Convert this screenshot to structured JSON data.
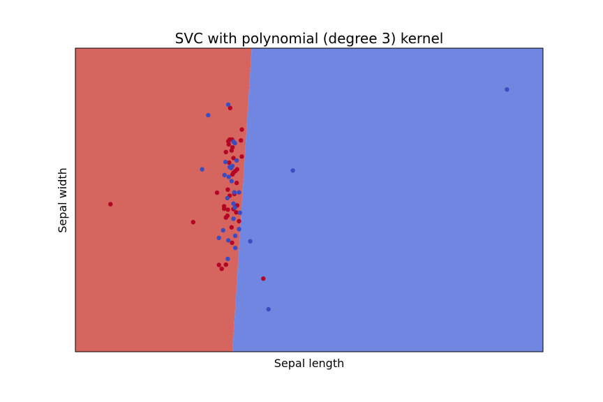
{
  "chart_data": {
    "type": "scatter",
    "title": "SVC with polynomial (degree 3) kernel",
    "xlabel": "Sepal length",
    "ylabel": "Sepal width",
    "xlim": [
      0,
      1
    ],
    "ylim": [
      0,
      1
    ],
    "ticks": "hidden",
    "grid": false,
    "legend": "none",
    "colors": {
      "region_red": "#d6645f",
      "region_blue": "#7086e0",
      "point_red": "#b40426",
      "point_blue": "#3b4cc0"
    },
    "decision_boundary": {
      "x_at_top": 0.377,
      "x_at_bottom": 0.336
    },
    "series": [
      {
        "class": "red",
        "points": [
          [
            0.075,
            0.486
          ],
          [
            0.252,
            0.427
          ],
          [
            0.331,
            0.803
          ],
          [
            0.356,
            0.732
          ],
          [
            0.354,
            0.696
          ],
          [
            0.33,
            0.699
          ],
          [
            0.328,
            0.683
          ],
          [
            0.335,
            0.699
          ],
          [
            0.336,
            0.673
          ],
          [
            0.322,
            0.658
          ],
          [
            0.334,
            0.663
          ],
          [
            0.338,
            0.638
          ],
          [
            0.356,
            0.643
          ],
          [
            0.346,
            0.601
          ],
          [
            0.329,
            0.623
          ],
          [
            0.336,
            0.584
          ],
          [
            0.338,
            0.59
          ],
          [
            0.345,
            0.556
          ],
          [
            0.326,
            0.534
          ],
          [
            0.34,
            0.52
          ],
          [
            0.33,
            0.514
          ],
          [
            0.303,
            0.524
          ],
          [
            0.318,
            0.479
          ],
          [
            0.318,
            0.471
          ],
          [
            0.346,
            0.482
          ],
          [
            0.326,
            0.468
          ],
          [
            0.338,
            0.47
          ],
          [
            0.344,
            0.459
          ],
          [
            0.325,
            0.448
          ],
          [
            0.322,
            0.442
          ],
          [
            0.35,
            0.43
          ],
          [
            0.334,
            0.41
          ],
          [
            0.335,
            0.359
          ],
          [
            0.307,
            0.286
          ],
          [
            0.322,
            0.287
          ],
          [
            0.313,
            0.273
          ],
          [
            0.402,
            0.241
          ],
          [
            0.342,
            0.595
          ],
          [
            0.327,
            0.693
          ]
        ]
      },
      {
        "class": "blue",
        "points": [
          [
            0.923,
            0.864
          ],
          [
            0.284,
            0.779
          ],
          [
            0.327,
            0.814
          ],
          [
            0.338,
            0.692
          ],
          [
            0.341,
            0.687
          ],
          [
            0.321,
            0.625
          ],
          [
            0.33,
            0.608
          ],
          [
            0.336,
            0.612
          ],
          [
            0.271,
            0.601
          ],
          [
            0.465,
            0.597
          ],
          [
            0.319,
            0.582
          ],
          [
            0.328,
            0.576
          ],
          [
            0.334,
            0.562
          ],
          [
            0.34,
            0.525
          ],
          [
            0.35,
            0.525
          ],
          [
            0.325,
            0.506
          ],
          [
            0.338,
            0.488
          ],
          [
            0.341,
            0.475
          ],
          [
            0.352,
            0.458
          ],
          [
            0.338,
            0.438
          ],
          [
            0.35,
            0.404
          ],
          [
            0.316,
            0.4
          ],
          [
            0.342,
            0.382
          ],
          [
            0.307,
            0.375
          ],
          [
            0.327,
            0.367
          ],
          [
            0.374,
            0.364
          ],
          [
            0.342,
            0.342
          ],
          [
            0.326,
            0.306
          ],
          [
            0.413,
            0.14
          ],
          [
            0.333,
            0.605
          ],
          [
            0.345,
            0.63
          ]
        ]
      }
    ]
  }
}
